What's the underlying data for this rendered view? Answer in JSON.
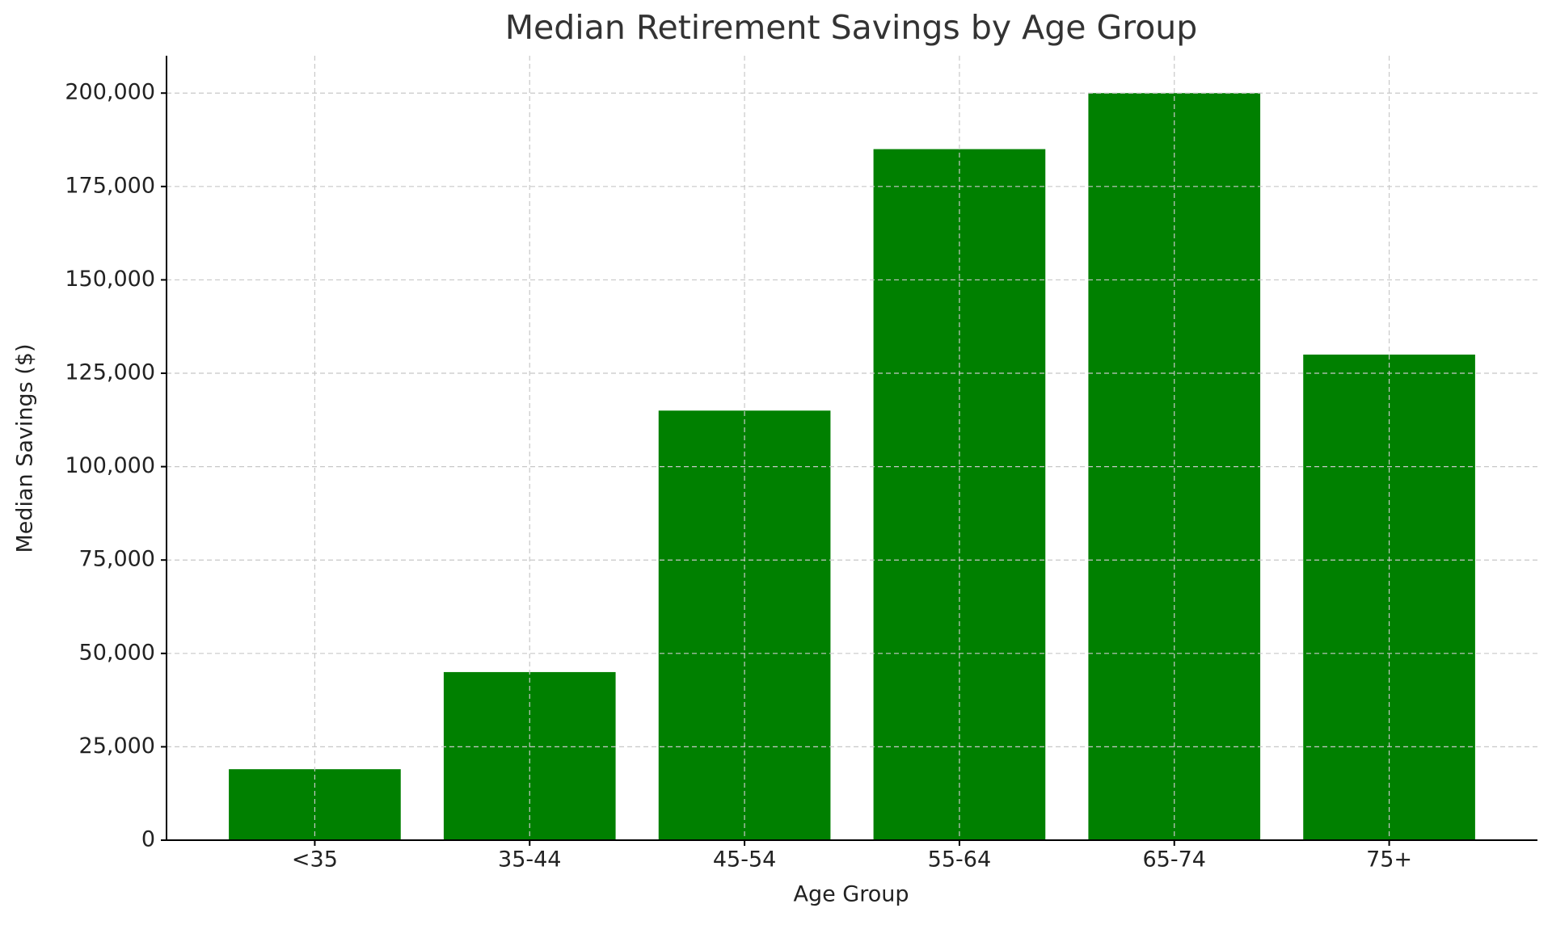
{
  "chart_data": {
    "type": "bar",
    "title": "Median Retirement Savings by Age Group",
    "x_label": "Age Group",
    "y_label": "Median Savings ($)",
    "categories": [
      "<35",
      "35-44",
      "45-54",
      "55-64",
      "65-74",
      "75+"
    ],
    "values": [
      19000,
      45000,
      115000,
      185000,
      200000,
      130000
    ],
    "color": "#008000",
    "ylim": [
      0,
      210000
    ],
    "yticks": [
      0,
      {
        "value": 25000,
        "label": "25,000"
      },
      {
        "value": 50000,
        "label": "50,000"
      },
      {
        "value": 75000,
        "label": "75,000"
      },
      {
        "value": 100000,
        "label": "100,000"
      },
      {
        "value": 125000,
        "label": "125,000"
      },
      {
        "value": 150000,
        "label": "150,000"
      },
      {
        "value": 175000,
        "label": "175,000"
      },
      {
        "value": 200000,
        "label": "200,000"
      }
    ],
    "grid": true
  }
}
